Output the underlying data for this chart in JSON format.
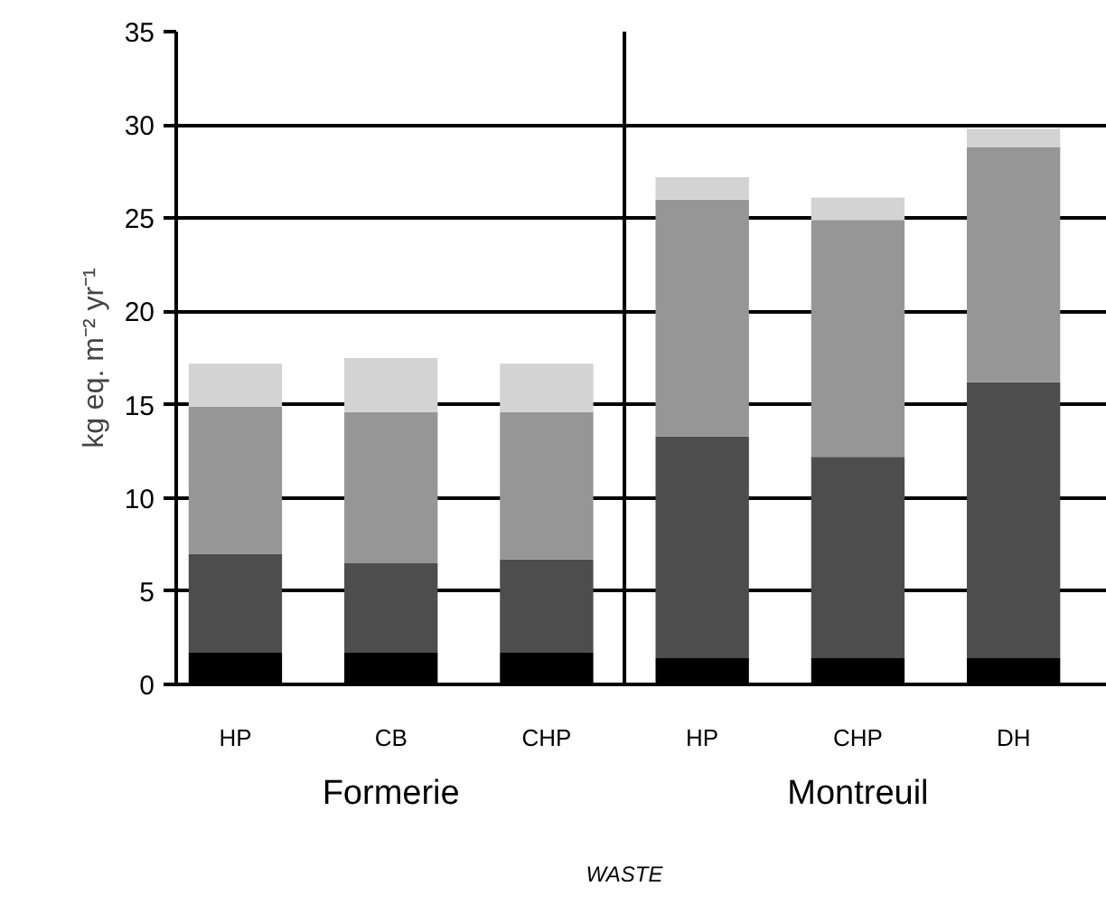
{
  "chart_data": {
    "type": "bar",
    "stacked": true,
    "ylabel": "kg eq. m⁻² yr⁻¹",
    "categories": [
      "HP",
      "CB",
      "CHP",
      "HP",
      "CHP",
      "DH"
    ],
    "series": [
      {
        "color": "#000000",
        "values": [
          1.7,
          1.7,
          1.7,
          1.4,
          1.4,
          1.4
        ]
      },
      {
        "color": "#4d4d4d",
        "values": [
          5.3,
          4.8,
          5.0,
          11.9,
          10.8,
          14.8
        ]
      },
      {
        "color": "#969696",
        "values": [
          7.9,
          8.1,
          7.9,
          12.7,
          12.7,
          12.6
        ]
      },
      {
        "color": "#d3d3d3",
        "values": [
          2.3,
          2.9,
          2.6,
          1.2,
          1.2,
          1.0
        ]
      }
    ],
    "ylim": [
      0,
      35
    ],
    "yticks": [
      0,
      5,
      10,
      15,
      20,
      25,
      30,
      35
    ],
    "grid": "y",
    "annotations": [
      "Formerie",
      "Montreuil",
      "WASTE"
    ]
  }
}
